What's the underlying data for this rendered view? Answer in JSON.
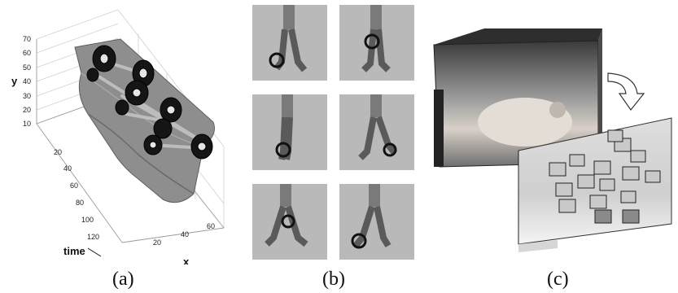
{
  "panels": [
    {
      "id": "a",
      "caption": "(a)",
      "axis_labels": {
        "x": "x",
        "y": "y",
        "time": "time"
      },
      "y_ticks": [
        "70",
        "60",
        "50",
        "40",
        "30",
        "20",
        "10"
      ],
      "time_ticks": [
        "20",
        "40",
        "60",
        "80",
        "100",
        "120"
      ],
      "x_ticks": [
        "20",
        "40",
        "60"
      ]
    },
    {
      "id": "b",
      "caption": "(b)",
      "frame_count": 6
    },
    {
      "id": "c",
      "caption": "(c)"
    }
  ],
  "colors": {
    "surface": "#8e8e8e",
    "frame_bg": "#b9b9b9",
    "marker": "#151515",
    "caption": "#111111"
  },
  "icons": {
    "transition": "curved-arrow-icon"
  }
}
